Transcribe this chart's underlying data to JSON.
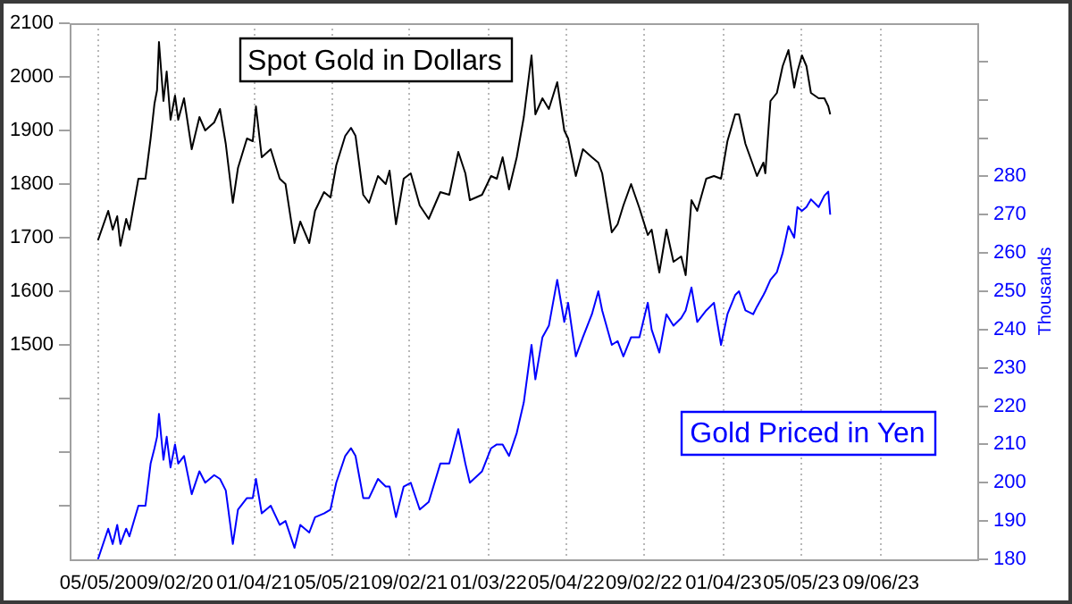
{
  "chart_data": {
    "type": "line",
    "x": [
      "2020-05-05",
      "2020-05-21",
      "2020-05-28",
      "2020-06-04",
      "2020-06-09",
      "2020-06-18",
      "2020-06-23",
      "2020-07-07",
      "2020-07-18",
      "2020-07-26",
      "2020-08-01",
      "2020-08-05",
      "2020-08-08",
      "2020-08-15",
      "2020-08-20",
      "2020-08-26",
      "2020-09-02",
      "2020-09-07",
      "2020-09-16",
      "2020-09-28",
      "2020-10-10",
      "2020-10-19",
      "2020-11-02",
      "2020-11-11",
      "2020-11-20",
      "2020-12-01",
      "2020-12-09",
      "2020-12-23",
      "2021-01-01",
      "2021-01-06",
      "2021-01-15",
      "2021-01-29",
      "2021-02-12",
      "2021-02-21",
      "2021-03-07",
      "2021-03-16",
      "2021-03-30",
      "2021-04-08",
      "2021-04-22",
      "2021-05-02",
      "2021-05-11",
      "2021-05-25",
      "2021-06-03",
      "2021-06-10",
      "2021-06-22",
      "2021-07-01",
      "2021-07-15",
      "2021-07-27",
      "2021-08-02",
      "2021-08-12",
      "2021-08-24",
      "2021-09-04",
      "2021-09-18",
      "2021-10-02",
      "2021-10-20",
      "2021-11-03",
      "2021-11-17",
      "2021-11-28",
      "2021-12-05",
      "2021-12-24",
      "2022-01-07",
      "2022-01-16",
      "2022-01-25",
      "2022-02-04",
      "2022-02-16",
      "2022-02-27",
      "2022-03-11",
      "2022-03-17",
      "2022-03-28",
      "2022-04-07",
      "2022-04-20",
      "2022-05-01",
      "2022-05-07",
      "2022-05-19",
      "2022-05-30",
      "2022-06-13",
      "2022-06-23",
      "2022-06-29",
      "2022-07-14",
      "2022-07-23",
      "2022-08-01",
      "2022-08-13",
      "2022-08-26",
      "2022-09-08",
      "2022-09-14",
      "2022-09-26",
      "2022-10-07",
      "2022-10-18",
      "2022-10-30",
      "2022-11-06",
      "2022-11-15",
      "2022-11-24",
      "2022-12-08",
      "2022-12-20",
      "2022-12-31",
      "2023-01-10",
      "2023-01-22",
      "2023-01-28",
      "2023-02-07",
      "2023-02-19",
      "2023-02-25",
      "2023-03-07",
      "2023-03-10",
      "2023-03-18",
      "2023-03-28",
      "2023-04-06",
      "2023-04-15",
      "2023-04-24",
      "2023-04-29",
      "2023-05-06",
      "2023-05-13",
      "2023-05-20",
      "2023-06-01",
      "2023-06-10",
      "2023-06-16",
      "2023-06-19"
    ],
    "series": [
      {
        "name": "Spot Gold in Dollars",
        "color": "#000000",
        "values": [
          1695,
          1750,
          1715,
          1740,
          1685,
          1735,
          1715,
          1810,
          1810,
          1885,
          1950,
          1975,
          2065,
          1955,
          2010,
          1920,
          1965,
          1920,
          1960,
          1865,
          1925,
          1900,
          1915,
          1940,
          1875,
          1765,
          1830,
          1885,
          1880,
          1945,
          1850,
          1865,
          1810,
          1800,
          1690,
          1730,
          1690,
          1750,
          1785,
          1775,
          1835,
          1890,
          1905,
          1890,
          1780,
          1765,
          1815,
          1800,
          1825,
          1725,
          1810,
          1820,
          1760,
          1735,
          1785,
          1780,
          1860,
          1820,
          1770,
          1780,
          1815,
          1810,
          1850,
          1790,
          1850,
          1925,
          2040,
          1930,
          1960,
          1940,
          1990,
          1900,
          1885,
          1815,
          1865,
          1850,
          1840,
          1820,
          1710,
          1725,
          1760,
          1800,
          1755,
          1705,
          1715,
          1635,
          1715,
          1655,
          1665,
          1630,
          1770,
          1750,
          1810,
          1815,
          1810,
          1880,
          1930,
          1930,
          1875,
          1835,
          1815,
          1840,
          1820,
          1955,
          1970,
          2020,
          2050,
          1980,
          2010,
          2040,
          2020,
          1970,
          1960,
          1960,
          1945,
          1930
        ]
      },
      {
        "name": "Gold Priced in Yen",
        "color": "#0000ff",
        "axis": "y2",
        "values": [
          180,
          188,
          184,
          189,
          184,
          188,
          186,
          194,
          194,
          205,
          209,
          212,
          218,
          206,
          212,
          204,
          210,
          205,
          207,
          197,
          203,
          200,
          202,
          201,
          198,
          184,
          193,
          196,
          196,
          201,
          192,
          194,
          189,
          190,
          183,
          189,
          187,
          191,
          192,
          193,
          200,
          207,
          209,
          207,
          196,
          196,
          201,
          199,
          199,
          191,
          199,
          200,
          193,
          195,
          205,
          205,
          214,
          205,
          200,
          203,
          209,
          210,
          210,
          207,
          213,
          221,
          236,
          227,
          238,
          241,
          253,
          242,
          247,
          233,
          238,
          244,
          250,
          245,
          236,
          237,
          233,
          238,
          238,
          247,
          240,
          234,
          244,
          241,
          243,
          245,
          251,
          242,
          245,
          247,
          236,
          244,
          249,
          250,
          245,
          244,
          246,
          249,
          250,
          253,
          255,
          260,
          267,
          264,
          272,
          271,
          272,
          274,
          272,
          275,
          276,
          270
        ]
      }
    ],
    "xlim": [
      "2020-03-22",
      "2024-02-03"
    ],
    "xticks": [
      {
        "value": "2020-05-05",
        "label": "05/05/20"
      },
      {
        "value": "2020-09-02",
        "label": "09/02/20"
      },
      {
        "value": "2021-01-04",
        "label": "01/04/21"
      },
      {
        "value": "2021-05-05",
        "label": "05/05/21"
      },
      {
        "value": "2021-09-02",
        "label": "09/02/21"
      },
      {
        "value": "2022-01-03",
        "label": "01/03/22"
      },
      {
        "value": "2022-05-04",
        "label": "05/04/22"
      },
      {
        "value": "2022-09-02",
        "label": "09/02/22"
      },
      {
        "value": "2023-01-04",
        "label": "01/04/23"
      },
      {
        "value": "2023-05-05",
        "label": "05/05/23"
      },
      {
        "value": "2023-09-06",
        "label": "09/06/23"
      }
    ],
    "ylim": [
      1100,
      2100
    ],
    "yticks": [
      {
        "value": 1200,
        "label": null
      },
      {
        "value": 1300,
        "label": null
      },
      {
        "value": 1400,
        "label": null
      },
      1500,
      1600,
      1700,
      1800,
      1900,
      2000,
      2100
    ],
    "y2lim": [
      180,
      320
    ],
    "y2ticks": [
      180,
      190,
      200,
      210,
      220,
      230,
      240,
      250,
      260,
      270,
      280,
      {
        "value": 290,
        "label": null
      },
      {
        "value": 300,
        "label": null
      },
      {
        "value": 310,
        "label": null
      }
    ],
    "y2label": "Thousands",
    "grid": "x"
  }
}
